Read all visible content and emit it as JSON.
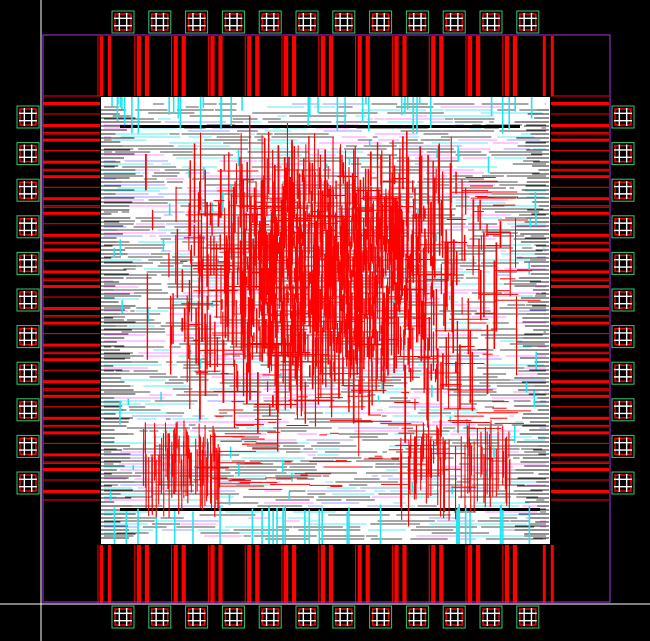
{
  "layout_view": {
    "colors": {
      "background": "#000000",
      "boundary": "#8a2bbf",
      "crosshair": "#ffffff",
      "core_fill": "#ffffff",
      "metal_red": "#ff0000",
      "metal_cyan": "#22e6ee",
      "metal_magenta": "#ff66ff",
      "metal_black": "#000000",
      "pad_outline": "#2ecc71",
      "pad_grid": "#ffffff"
    },
    "pads": {
      "top_count": 12,
      "bottom_count": 12,
      "left_count": 11,
      "right_count": 11
    },
    "wiring": {
      "red_density": "high",
      "cyan_density": "medium",
      "horizontal_track_density": "high"
    }
  }
}
